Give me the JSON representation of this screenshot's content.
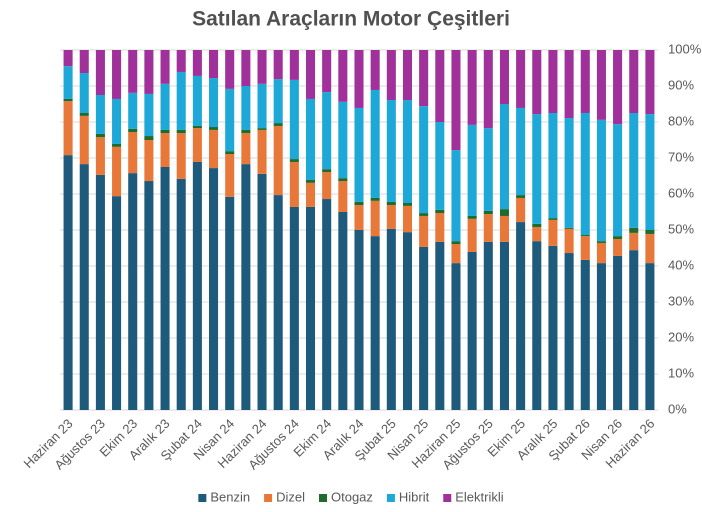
{
  "chart_data": {
    "type": "stacked_bar",
    "title": "Satılan Araçların Motor Çeşitleri",
    "categories": [
      "Haziran 23",
      null,
      "Ağustos 23",
      null,
      "Ekim 23",
      null,
      "Aralık 23",
      null,
      "Şubat 24",
      null,
      "Nisan 24",
      null,
      "Haziran 24",
      null,
      "Ağustos 24",
      null,
      "Ekim 24",
      null,
      "Aralık 24",
      null,
      "Şubat 25",
      null,
      "Nisan 25",
      null,
      "Haziran 25",
      null,
      "Ağustos 25",
      null,
      "Ekim 25",
      null,
      "Aralık 25",
      null,
      "Şubat 26",
      null,
      "Nisan 26",
      null,
      "Haziran 26"
    ],
    "series": [
      {
        "name": "Benzin",
        "color": "#1d5a7c",
        "values": [
          70.8,
          68.3,
          65.3,
          59.4,
          65.8,
          63.6,
          67.5,
          64.2,
          68.9,
          67.2,
          59.2,
          68.3,
          65.6,
          59.7,
          56.4,
          56.4,
          58.6,
          55,
          50,
          48.3,
          50.3,
          49.4,
          45.3,
          46.7,
          40.8,
          43.9,
          46.7,
          46.7,
          52.2,
          46.9,
          45.6,
          43.6,
          41.7,
          40.8,
          42.8,
          44.4,
          40.8
        ]
      },
      {
        "name": "Dizel",
        "color": "#e8773a",
        "values": [
          15,
          13.4,
          10.5,
          13.7,
          11.4,
          11.4,
          9.4,
          12.7,
          9.4,
          10.6,
          11.9,
          8.6,
          12.2,
          19.2,
          12.5,
          6.7,
          7.5,
          8.6,
          6.9,
          9.8,
          6.6,
          7.3,
          8.6,
          8,
          5.3,
          9.2,
          7.7,
          7.2,
          6.7,
          3.9,
          7.2,
          6.7,
          6.6,
          5.6,
          4.7,
          4.8,
          8.1
        ]
      },
      {
        "name": "Otogaz",
        "color": "#1e6b2a",
        "values": [
          0.6,
          0.8,
          0.9,
          0.8,
          0.9,
          1.1,
          0.9,
          0.9,
          0.6,
          0.8,
          0.8,
          0.9,
          0.5,
          0.8,
          0.8,
          0.8,
          0.8,
          0.8,
          0.9,
          0.8,
          0.9,
          0.8,
          0.8,
          0.9,
          0.8,
          0.8,
          0.9,
          1.9,
          0.8,
          0.9,
          0.5,
          0.3,
          0.3,
          0.5,
          0.8,
          1.4,
          1.1
        ]
      },
      {
        "name": "Hibrit",
        "color": "#1ea8d8",
        "values": [
          9.1,
          11.1,
          10.8,
          12.5,
          10,
          11.7,
          12.8,
          16.1,
          13.9,
          13.6,
          17.3,
          12.2,
          12.3,
          12.2,
          22,
          22.5,
          21.4,
          21.2,
          26.1,
          30,
          28.3,
          28.6,
          29.7,
          24.4,
          25.3,
          25.3,
          23,
          29.2,
          24.2,
          30.5,
          29.2,
          30.5,
          33.9,
          33.7,
          31.1,
          31.9,
          32.2
        ]
      },
      {
        "name": "Elektrikli",
        "color": "#a0309a",
        "values": [
          4.5,
          6.4,
          12.5,
          13.6,
          11.9,
          12.2,
          9.4,
          6.1,
          7.2,
          7.8,
          10.8,
          10,
          9.4,
          8.1,
          8.3,
          13.6,
          11.7,
          14.4,
          16.1,
          11.1,
          13.9,
          13.9,
          15.6,
          20,
          27.8,
          20.8,
          21.7,
          15,
          16.1,
          17.8,
          17.5,
          18.9,
          17.5,
          19.4,
          20.6,
          17.5,
          17.8
        ]
      }
    ],
    "ylim": [
      0,
      100
    ],
    "yticks": [
      {
        "value": 0,
        "label": "0%"
      },
      {
        "value": 10,
        "label": "10%"
      },
      {
        "value": 20,
        "label": "20%"
      },
      {
        "value": 30,
        "label": "30%"
      },
      {
        "value": 40,
        "label": "40%"
      },
      {
        "value": 50,
        "label": "50%"
      },
      {
        "value": 60,
        "label": "60%"
      },
      {
        "value": 70,
        "label": "70%"
      },
      {
        "value": 80,
        "label": "80%"
      },
      {
        "value": 90,
        "label": "90%"
      },
      {
        "value": 100,
        "label": "100%"
      }
    ],
    "grid": true,
    "legend": "bottom"
  }
}
